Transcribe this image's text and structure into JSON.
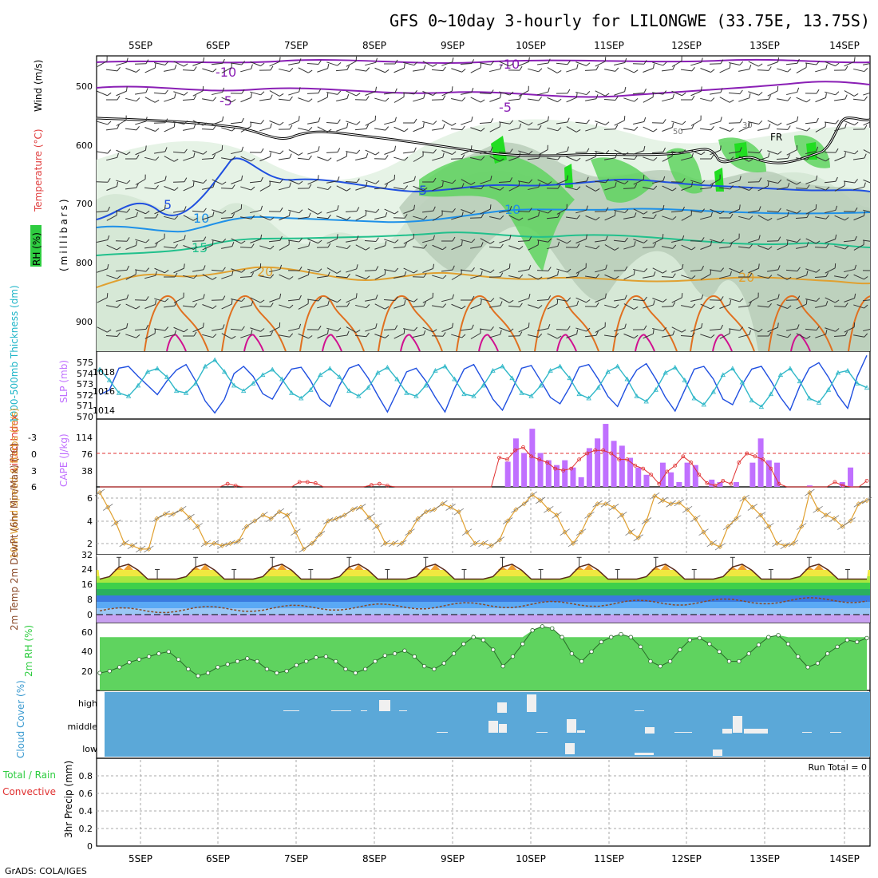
{
  "title": "GFS 0~10day 3-hourly for LILONGWE (33.75E, 13.75S)",
  "footer": "GrADS: COLA/IGES",
  "run_total": "Run Total = 0",
  "days": [
    "5SEP",
    "6SEP",
    "7SEP",
    "8SEP",
    "9SEP",
    "10SEP",
    "11SEP",
    "12SEP",
    "13SEP",
    "14SEP"
  ],
  "colors": {
    "temp_purple": "#8a1fb5",
    "blue": "#1f4fe0",
    "lightblue": "#1e90e8",
    "teal": "#21c08c",
    "orange": "#e0a030",
    "darkorange": "#e07020",
    "magenta": "#d01090",
    "rh_green": "#2ecc40",
    "cape": "#c070ff",
    "li_red": "#e03030",
    "cloud_bg": "#5ba8d8"
  },
  "panels": {
    "upper": {
      "ylabel_wind": "Wind (m/s)",
      "ylabel_temp": "Temperature (°C)",
      "ylabel_mb": "(millibars)",
      "ylabel_rh": "RH (%)",
      "yticks": [
        "500",
        "600",
        "700",
        "800",
        "900"
      ],
      "contour_labels": [
        "-10",
        "-5",
        "-10",
        "-5",
        "5",
        "10",
        "15",
        "20",
        "5",
        "10",
        "20",
        "FR",
        "50",
        "30"
      ]
    },
    "thickness": {
      "ylabel_left": "1000-500mb Thickness (dm)",
      "ylabel_right": "SLP (mb)",
      "left_ticks": [
        "575",
        "574",
        "573",
        "572",
        "571",
        "570"
      ],
      "right_ticks": [
        "1018",
        "1016",
        "1014"
      ]
    },
    "cape": {
      "ylabel_left": "Lifted Index",
      "ylabel_right": "CAPE (J/kg)",
      "li_ticks": [
        "-3",
        "0",
        "3",
        "6"
      ],
      "cape_ticks": [
        "114",
        "76",
        "38"
      ]
    },
    "wind10m": {
      "ylabel": "10m Wind Speed & Barbs (m/s)",
      "yticks": [
        "6",
        "4",
        "2"
      ]
    },
    "temp2m": {
      "ylabel": "2m Temp 2m DewPt (6hr Min/Max) (°C)",
      "yticks": [
        "32",
        "24",
        "16",
        "8",
        "0"
      ]
    },
    "rh2m": {
      "ylabel": "2m RH (%)",
      "yticks": [
        "60",
        "40",
        "20"
      ]
    },
    "cloud": {
      "ylabel": "Cloud Cover (%)",
      "levels": [
        "high",
        "middle",
        "low"
      ]
    },
    "precip": {
      "ylabel": "3hr Precip (mm)",
      "legend_total": "Total / Rain",
      "legend_conv": "Convective",
      "yticks": [
        "0.8",
        "0.6",
        "0.4",
        "0.2",
        "0"
      ]
    }
  },
  "chart_data": [
    {
      "type": "line",
      "title": "1000-500mb Thickness (dm) / SLP (mb)",
      "x_unit": "3-hourly steps from 4SEP 12Z",
      "series": [
        {
          "name": "SLP (mb)",
          "ylim": [
            1013,
            1020
          ],
          "values": [
            1015.5,
            1016,
            1018.4,
            1018.6,
            1017.5,
            1016.5,
            1015.5,
            1017,
            1018.2,
            1018.8,
            1017,
            1014.8,
            1013.5,
            1015,
            1017.8,
            1018.6,
            1017.5,
            1015.6,
            1015,
            1016.8,
            1018.3,
            1018.5,
            1017,
            1015,
            1014.2,
            1016.5,
            1018.4,
            1018.8,
            1017.3,
            1015.4,
            1013.6,
            1015.8,
            1018,
            1018.4,
            1017,
            1015.2,
            1013.6,
            1016.2,
            1018.3,
            1018.8,
            1017,
            1015,
            1013.8,
            1016,
            1018.4,
            1018.7,
            1017,
            1015.2,
            1014.5,
            1016.3,
            1018.5,
            1018.8,
            1017.2,
            1015.3,
            1014.2,
            1016.5,
            1018.2,
            1018.9,
            1017.2,
            1015.2,
            1013.7,
            1016,
            1018.3,
            1018.6,
            1017.2,
            1015,
            1014.4,
            1016.6,
            1018.3,
            1018.6,
            1017,
            1015.2,
            1013.8,
            1016.4,
            1018.4,
            1019,
            1017.4,
            1015.4,
            1014,
            1017.5,
            1019.8
          ]
        },
        {
          "name": "Thickness (dm)",
          "ylim": [
            570,
            576
          ],
          "values": [
            574.5,
            573.5,
            572.3,
            572.0,
            573.0,
            574.3,
            574.6,
            573.8,
            572.5,
            572.3,
            573.2,
            574.8,
            575.4,
            574.3,
            573.0,
            572.5,
            573.2,
            574.0,
            574.5,
            573.6,
            572.3,
            571.8,
            572.6,
            574.0,
            574.6,
            573.8,
            572.5,
            572.0,
            572.8,
            574.2,
            574.7,
            573.6,
            572.3,
            572.0,
            573.0,
            574.4,
            574.8,
            573.6,
            572.2,
            572.0,
            573.0,
            574.4,
            574.8,
            573.7,
            572.3,
            572.0,
            573.0,
            574.4,
            574.8,
            573.7,
            572.2,
            571.8,
            572.8,
            574.3,
            574.8,
            573.6,
            572.0,
            571.5,
            572.6,
            574.2,
            574.7,
            573.5,
            571.8,
            571.2,
            572.4,
            574.0,
            574.6,
            573.3,
            571.6,
            571.0,
            572.2,
            574.0,
            574.6,
            573.4,
            571.8,
            571.4,
            572.6,
            574.2,
            574.4,
            573.2,
            572.8
          ]
        }
      ]
    },
    {
      "type": "bar",
      "title": "CAPE (J/kg) / Lifted Index",
      "x_unit": "3-hourly steps from 4SEP 12Z",
      "series": [
        {
          "name": "CAPE (J/kg)",
          "ylim": [
            0,
            140
          ],
          "values": [
            0,
            0,
            0,
            0,
            0,
            0,
            0,
            0,
            0,
            0,
            0,
            0,
            0,
            0,
            0,
            0,
            0,
            0,
            0,
            0,
            0,
            0,
            0,
            0,
            0,
            0,
            0,
            0,
            0,
            0,
            0,
            0,
            0,
            0,
            0,
            0,
            0,
            0,
            0,
            0,
            0,
            0,
            0,
            0,
            0,
            0,
            0,
            0,
            0,
            0,
            52,
            100,
            70,
            120,
            70,
            55,
            45,
            55,
            40,
            20,
            80,
            100,
            130,
            95,
            85,
            60,
            40,
            25,
            0,
            50,
            30,
            10,
            50,
            45,
            0,
            15,
            10,
            0,
            10,
            0,
            50,
            100,
            55,
            50,
            0,
            0,
            0,
            3,
            0,
            0,
            0,
            10,
            40,
            0,
            0
          ]
        },
        {
          "name": "Lifted Index",
          "ylim": [
            6,
            -5
          ],
          "values": [
            6,
            6,
            6,
            6,
            6,
            6,
            6,
            6,
            6,
            6,
            6,
            6,
            6,
            6,
            6,
            6,
            5.5,
            5.8,
            6,
            6,
            6,
            6,
            6,
            6,
            6,
            5.2,
            5.2,
            5.4,
            6,
            6,
            6,
            6,
            6,
            6,
            5.7,
            5.5,
            5.8,
            6,
            6,
            6,
            6,
            6,
            6,
            6,
            6,
            6,
            6,
            6,
            6,
            6,
            1.2,
            1.5,
            0,
            -0.5,
            1,
            1.5,
            2,
            3,
            3.3,
            3,
            1.5,
            0.5,
            0,
            0,
            0.5,
            1.5,
            1.5,
            2.5,
            3,
            4,
            5.5,
            3.5,
            2.5,
            1,
            2,
            4,
            5.4,
            5.8,
            5,
            5.5,
            2,
            0.5,
            1,
            1.5,
            3,
            5.5,
            6,
            6,
            6,
            6,
            6,
            6,
            5.2,
            5.8,
            6,
            6,
            5
          ]
        }
      ]
    },
    {
      "type": "line",
      "title": "10m Wind Speed (m/s)",
      "x_unit": "3-hourly steps from 4SEP 12Z",
      "ylim": [
        1,
        7
      ],
      "values": [
        6.5,
        5.2,
        3.8,
        2.0,
        1.8,
        1.5,
        1.5,
        4.2,
        4.6,
        4.6,
        5.0,
        4.3,
        3.5,
        2.0,
        2.0,
        1.8,
        2.0,
        2.2,
        3.5,
        4.0,
        4.5,
        4.2,
        4.8,
        4.5,
        3.0,
        1.5,
        2.0,
        2.8,
        4.0,
        4.2,
        4.5,
        5.0,
        5.2,
        4.3,
        3.5,
        2.0,
        2.0,
        2.0,
        3.0,
        4.2,
        4.8,
        5.0,
        5.5,
        5.2,
        4.8,
        3.0,
        2.0,
        2.0,
        1.8,
        2.3,
        4.0,
        5.0,
        5.5,
        6.3,
        5.8,
        5.0,
        4.5,
        3.0,
        2.0,
        3.0,
        4.5,
        5.5,
        5.5,
        5.2,
        4.5,
        3.0,
        2.5,
        4.0,
        6.2,
        5.8,
        5.5,
        5.6,
        5.0,
        4.2,
        3.0,
        2.0,
        1.7,
        3.5,
        4.2,
        6.0,
        5.2,
        4.5,
        3.5,
        2.0,
        1.8,
        2.0,
        3.5,
        6.5,
        5.0,
        4.5,
        4.2,
        3.5,
        4.0,
        5.5,
        5.8
      ]
    },
    {
      "type": "area",
      "title": "2m RH (%)",
      "x_unit": "3-hourly steps from 4SEP 12Z",
      "ylim": [
        0,
        70
      ],
      "values": [
        18,
        20,
        24,
        29,
        32,
        35,
        38,
        40,
        32,
        22,
        15,
        18,
        24,
        27,
        30,
        33,
        30,
        22,
        18,
        20,
        26,
        30,
        34,
        35,
        30,
        22,
        18,
        22,
        30,
        36,
        38,
        41,
        35,
        25,
        22,
        28,
        38,
        48,
        55,
        52,
        42,
        25,
        35,
        48,
        62,
        66,
        64,
        55,
        38,
        30,
        40,
        50,
        55,
        58,
        55,
        45,
        30,
        25,
        30,
        42,
        52,
        54,
        48,
        40,
        30,
        30,
        38,
        47,
        55,
        57,
        48,
        35,
        24,
        28,
        38,
        45,
        52,
        50,
        54
      ]
    }
  ]
}
